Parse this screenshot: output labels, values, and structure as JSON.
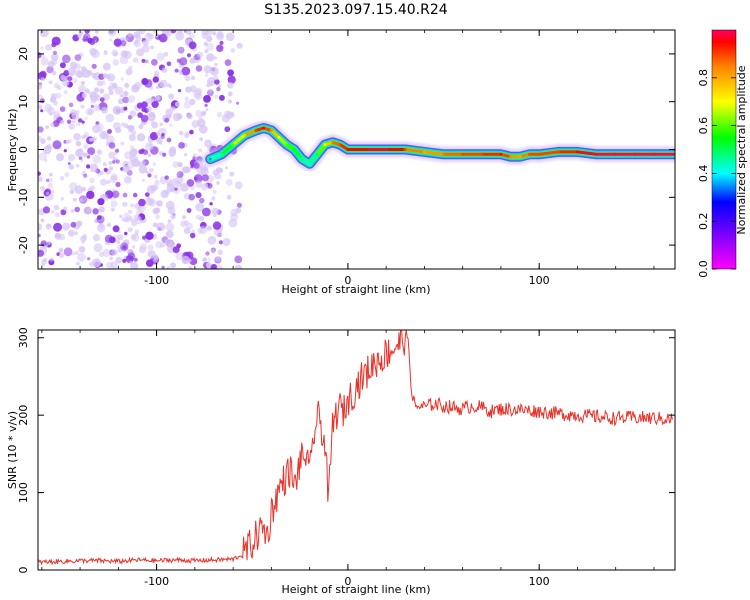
{
  "title": "S135.2023.097.15.40.R24",
  "colors": {
    "snr_line": "#e8322a",
    "noise_dot_light": "#d6c4f5",
    "noise_dot_dark": "#8a33e6",
    "frame": "#000000"
  },
  "colorbar": {
    "label": "Normalized spectral amplitude",
    "ticks": [
      "0.0",
      "0.2",
      "0.4",
      "0.6",
      "0.8"
    ],
    "tick_values": [
      0.0,
      0.2,
      0.4,
      0.6,
      0.8
    ],
    "range": [
      0,
      1
    ],
    "colormap": "gist_rainbow (magenta low → red high)"
  },
  "chart_data": [
    {
      "type": "heatmap",
      "name": "spectrogram",
      "title": "S135.2023.097.15.40.R24",
      "xlabel": "Height of straight line (km)",
      "ylabel": "Frequency (Hz)",
      "xlim": [
        -162,
        171
      ],
      "ylim": [
        -25,
        25
      ],
      "xticks": [
        -100,
        0,
        100
      ],
      "xtick_labels": [
        "-100",
        "0",
        "100"
      ],
      "yticks": [
        -20,
        -10,
        0,
        10,
        20
      ],
      "ytick_labels": [
        "-20",
        "-10",
        "0",
        "10",
        "20"
      ],
      "grid": false,
      "noise_region_x": [
        -162,
        -66
      ],
      "signal_track": {
        "x": [
          -72,
          -66,
          -60,
          -54,
          -48,
          -44,
          -40,
          -36,
          -32,
          -28,
          -24,
          -20,
          -16,
          -12,
          -8,
          -4,
          0,
          5,
          10,
          20,
          30,
          40,
          50,
          60,
          70,
          80,
          85,
          90,
          95,
          100,
          110,
          120,
          130,
          140,
          150,
          160,
          170
        ],
        "freq": [
          -2,
          -1,
          1,
          3,
          4,
          4.5,
          4,
          2.5,
          1,
          0,
          -2,
          -3,
          -1,
          1,
          1.5,
          1,
          0,
          0,
          0,
          0,
          0,
          -0.5,
          -1,
          -1,
          -1,
          -1,
          -1.5,
          -1.5,
          -1,
          -1,
          -0.5,
          -0.5,
          -1,
          -1,
          -1,
          -1,
          -1
        ],
        "amplitude": [
          0.35,
          0.45,
          0.6,
          0.75,
          0.9,
          0.95,
          0.85,
          0.7,
          0.6,
          0.55,
          0.45,
          0.4,
          0.5,
          0.7,
          0.85,
          0.9,
          0.95,
          0.95,
          0.95,
          1.0,
          0.9,
          0.8,
          0.85,
          0.9,
          0.9,
          0.95,
          0.85,
          0.8,
          0.9,
          0.9,
          0.9,
          0.95,
          1.0,
          1.0,
          1.0,
          1.0,
          1.0
        ]
      }
    },
    {
      "type": "line",
      "name": "snr",
      "xlabel": "Height of straight line (km)",
      "ylabel": "SNR (10 * v/v)",
      "xlim": [
        -162,
        171
      ],
      "ylim": [
        0,
        310
      ],
      "xticks": [
        -100,
        0,
        100
      ],
      "xtick_labels": [
        "-100",
        "0",
        "100"
      ],
      "yticks": [
        0,
        100,
        200,
        300
      ],
      "ytick_labels": [
        "0",
        "100",
        "200",
        "300"
      ],
      "grid": false,
      "x": [
        -162,
        -150,
        -140,
        -130,
        -120,
        -110,
        -100,
        -90,
        -80,
        -70,
        -60,
        -55,
        -50,
        -45,
        -42,
        -40,
        -38,
        -35,
        -30,
        -28,
        -25,
        -22,
        -20,
        -18,
        -15,
        -12,
        -10,
        -8,
        -5,
        -2,
        0,
        3,
        5,
        8,
        10,
        13,
        15,
        18,
        20,
        23,
        25,
        28,
        30,
        31,
        32,
        33,
        35,
        38,
        40,
        45,
        50,
        55,
        60,
        65,
        70,
        75,
        80,
        90,
        100,
        110,
        120,
        130,
        140,
        150,
        160,
        170
      ],
      "y": [
        10,
        11,
        12,
        12,
        11,
        13,
        12,
        13,
        12,
        13,
        14,
        20,
        35,
        55,
        45,
        75,
        90,
        110,
        130,
        105,
        140,
        150,
        120,
        175,
        200,
        160,
        90,
        185,
        210,
        205,
        220,
        230,
        240,
        250,
        255,
        265,
        270,
        275,
        280,
        285,
        290,
        295,
        300,
        305,
        275,
        240,
        210,
        212,
        210,
        215,
        212,
        210,
        208,
        212,
        210,
        205,
        208,
        207,
        205,
        202,
        200,
        198,
        196,
        197,
        196,
        195
      ]
    }
  ]
}
